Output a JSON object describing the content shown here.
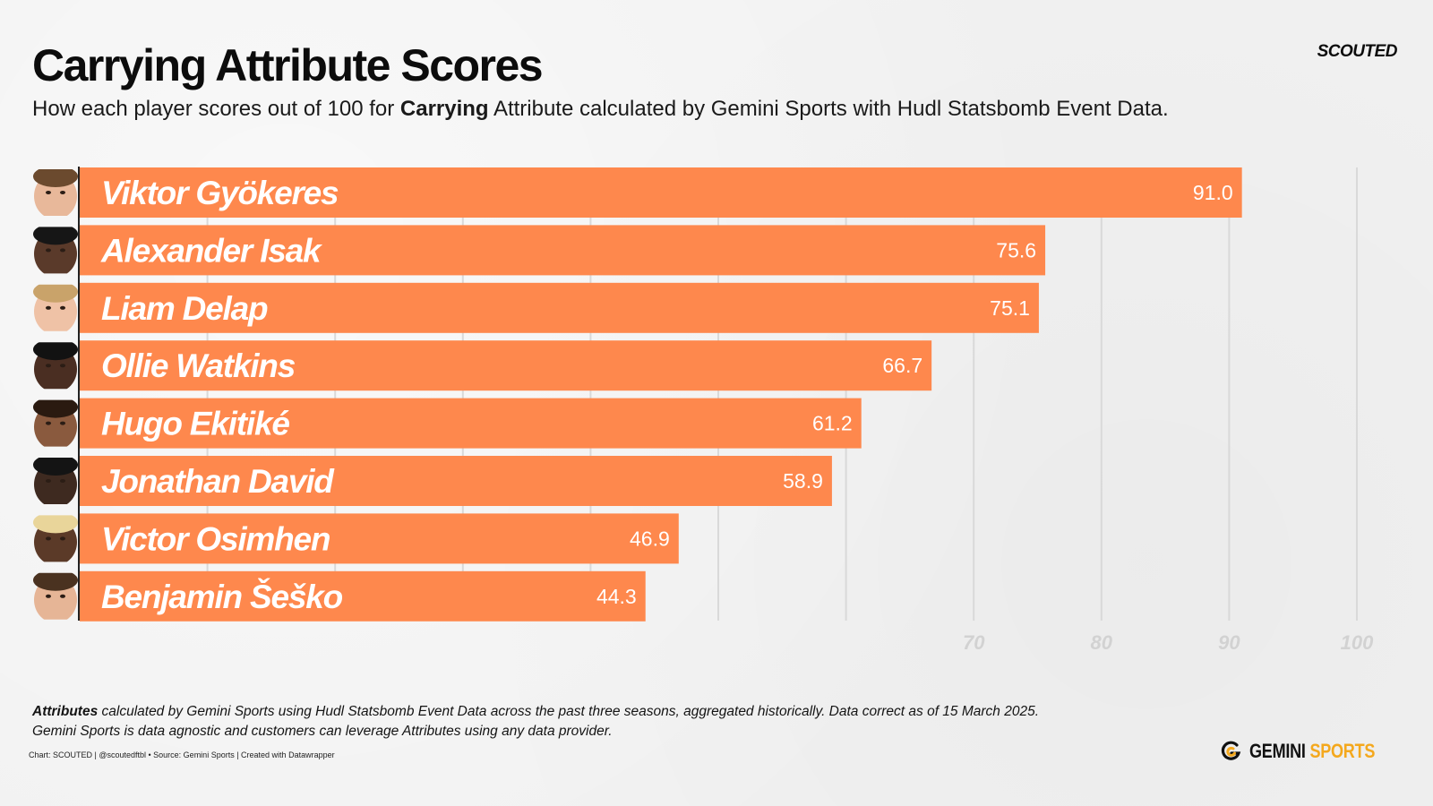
{
  "header": {
    "title": "Carrying Attribute Scores",
    "subtitle_pre": "How each player scores out of 100 for ",
    "subtitle_bold": "Carrying",
    "subtitle_post": " Attribute calculated by Gemini Sports with Hudl Statsbomb Event Data.",
    "brand": "SCOUTED"
  },
  "chart_data": {
    "type": "bar",
    "orientation": "horizontal",
    "title": "Carrying Attribute Scores",
    "categories": [
      "Viktor  Gyökeres",
      "Alexander Isak",
      "Liam Delap",
      "Ollie Watkins",
      "Hugo Ekitiké",
      "Jonathan David",
      "Victor Osimhen",
      "Benjamin Šeško"
    ],
    "values": [
      91.0,
      75.6,
      75.1,
      66.7,
      61.2,
      58.9,
      46.9,
      44.3
    ],
    "value_labels": [
      "91.0",
      "75.6",
      "75.1",
      "66.7",
      "61.2",
      "58.9",
      "46.9",
      "44.3"
    ],
    "xlim": [
      0,
      100
    ],
    "gridlines": [
      10,
      20,
      30,
      40,
      50,
      60,
      70,
      80,
      90,
      100
    ],
    "tick_labels": [
      {
        "value": 70,
        "label": "70"
      },
      {
        "value": 80,
        "label": "80"
      },
      {
        "value": 90,
        "label": "90"
      },
      {
        "value": 100,
        "label": "100"
      }
    ],
    "colors": {
      "bar": "#fe884d",
      "bar_text": "#ffffff",
      "grid": "#d9d9d9",
      "axis": "#222222",
      "tick": "#d2d2d2"
    }
  },
  "footer": {
    "note_bold": "Attributes",
    "note_line1": " calculated by Gemini Sports using Hudl Statsbomb Event Data across the past three seasons, aggregated historically. Data correct as of 15 March 2025.",
    "note_line2": "Gemini Sports is data agnostic and customers can leverage Attributes using any data provider.",
    "credit": "Chart: SCOUTED | @scoutedftbl • Source: Gemini Sports | Created with Datawrapper",
    "logo_word1": "GEMINI",
    "logo_word2": "SPORTS",
    "logo_color": "#f4a81d"
  }
}
